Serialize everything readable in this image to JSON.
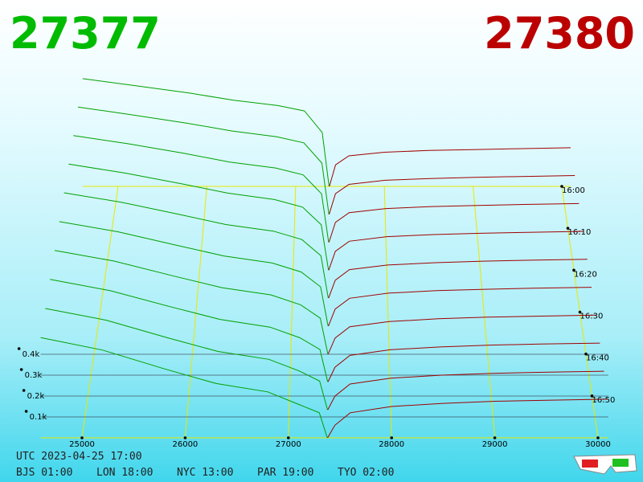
{
  "chart_data": {
    "type": "depth3d",
    "bid_price": "27377",
    "ask_price": "27380",
    "bid_color": "#00a000",
    "ask_color": "#a00000",
    "xlim": [
      24600,
      30100
    ],
    "xticks": [
      25000,
      26000,
      27000,
      28000,
      29000,
      30000
    ],
    "yticks": [
      {
        "value": 100,
        "label": "0.1k"
      },
      {
        "value": 200,
        "label": "0.2k"
      },
      {
        "value": 300,
        "label": "0.3k"
      },
      {
        "value": 400,
        "label": "0.4k"
      }
    ],
    "time_ticks": [
      "16:00",
      "16:10",
      "16:20",
      "16:30",
      "16:40",
      "16:50"
    ],
    "bid_x": [
      24600,
      25200,
      25800,
      26300,
      26800,
      27100,
      27300,
      27377
    ],
    "ask_x": [
      27380,
      27450,
      27600,
      28000,
      28500,
      29000,
      29500,
      30100
    ],
    "bids": [
      [
        600,
        560,
        520,
        480,
        450,
        420,
        300,
        0
      ],
      [
        587,
        544,
        499,
        456,
        424,
        391,
        280,
        0
      ],
      [
        573,
        529,
        478,
        431,
        399,
        362,
        260,
        0
      ],
      [
        560,
        513,
        457,
        407,
        373,
        333,
        240,
        0
      ],
      [
        547,
        498,
        436,
        382,
        348,
        304,
        220,
        0
      ],
      [
        533,
        482,
        414,
        358,
        322,
        276,
        200,
        0
      ],
      [
        520,
        467,
        393,
        333,
        297,
        247,
        180,
        0
      ],
      [
        507,
        451,
        372,
        309,
        271,
        218,
        160,
        0
      ],
      [
        493,
        436,
        351,
        284,
        246,
        189,
        140,
        0
      ],
      [
        480,
        420,
        330,
        260,
        220,
        160,
        120,
        0
      ]
    ],
    "asks": [
      [
        0,
        120,
        170,
        190,
        200,
        205,
        210,
        215
      ],
      [
        0,
        113,
        164,
        186,
        196,
        202,
        207,
        212
      ],
      [
        0,
        107,
        159,
        181,
        192,
        198,
        203,
        208
      ],
      [
        0,
        100,
        153,
        177,
        188,
        195,
        200,
        205
      ],
      [
        0,
        93,
        148,
        172,
        184,
        192,
        197,
        202
      ],
      [
        0,
        87,
        142,
        168,
        181,
        188,
        193,
        198
      ],
      [
        0,
        80,
        137,
        163,
        177,
        185,
        190,
        195
      ],
      [
        0,
        73,
        131,
        159,
        173,
        182,
        187,
        192
      ],
      [
        0,
        67,
        126,
        154,
        169,
        178,
        183,
        188
      ],
      [
        0,
        60,
        120,
        150,
        165,
        175,
        180,
        185
      ]
    ]
  },
  "footer": {
    "utc": "UTC 2023-04-25 17:00",
    "zones": [
      "BJS 01:00",
      "LON 18:00",
      "NYC 13:00",
      "PAR 19:00",
      "TYO 02:00"
    ]
  }
}
